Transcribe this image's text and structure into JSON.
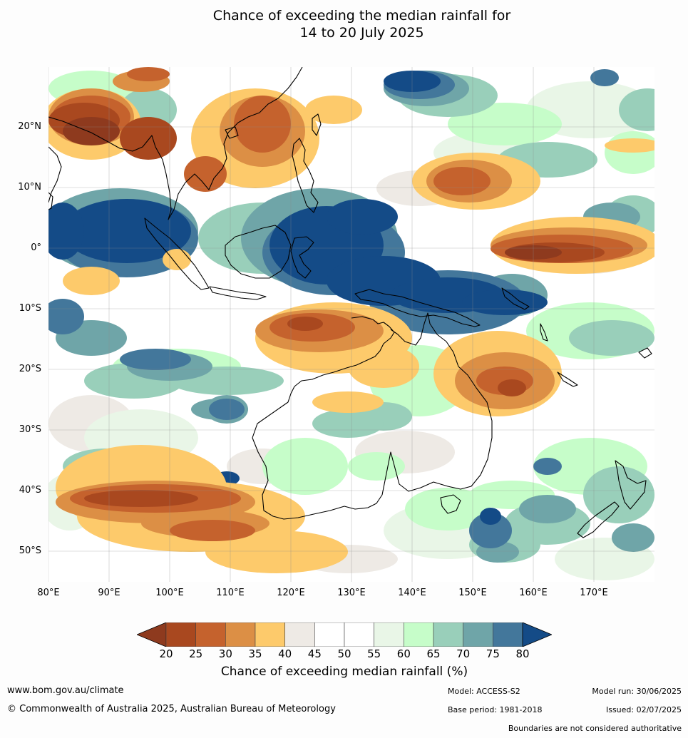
{
  "title": {
    "line1": "Chance of exceeding the median rainfall for",
    "line2": "14 to 20 July 2025"
  },
  "map": {
    "latitude_labels": [
      "20°N",
      "10°N",
      "0°",
      "10°S",
      "20°S",
      "30°S",
      "40°S",
      "50°S"
    ],
    "longitude_labels": [
      "80°E",
      "90°E",
      "100°E",
      "110°E",
      "120°E",
      "130°E",
      "140°E",
      "150°E",
      "160°E",
      "170°E"
    ]
  },
  "legend": {
    "title": "Chance of exceeding median rainfall (%)",
    "ticks": [
      "20",
      "25",
      "30",
      "35",
      "40",
      "45",
      "50",
      "55",
      "60",
      "65",
      "70",
      "75",
      "80"
    ],
    "colors": [
      "#8e3a1e",
      "#a9481f",
      "#c5622d",
      "#dc8f45",
      "#fdca6b",
      "#eeeae5",
      "#ffffff",
      "#ffffff",
      "#e9f6e7",
      "#c6fdc9",
      "#99cfba",
      "#6fa5a8",
      "#43779b",
      "#144b87"
    ]
  },
  "footer": {
    "website": "www.bom.gov.au/climate",
    "copyright": "© Commonwealth of Australia 2025, Australian Bureau of Meteorology",
    "model": "Model: ACCESS-S2",
    "base_period": "Base period: 1981-2018",
    "model_run": "Model run: 30/06/2025",
    "issued": "Issued: 02/07/2025",
    "disclaimer": "Boundaries are not considered authoritative"
  }
}
